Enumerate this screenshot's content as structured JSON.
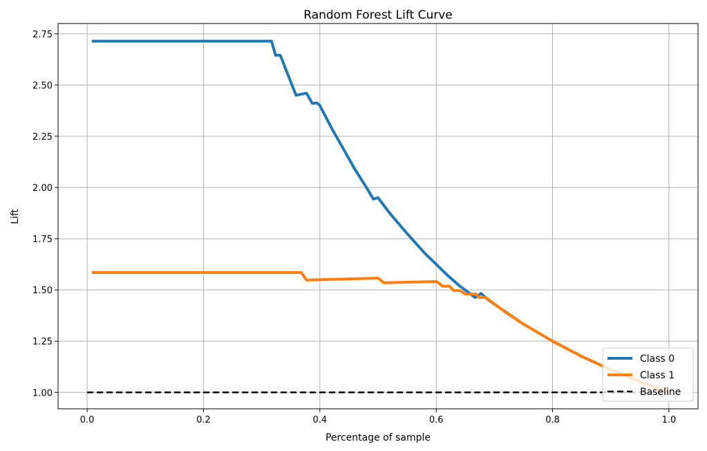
{
  "chart_data": {
    "type": "line",
    "title": "Random Forest Lift Curve",
    "xlabel": "Percentage of sample",
    "ylabel": "Lift",
    "xlim": [
      -0.05,
      1.05
    ],
    "ylim": [
      0.92,
      2.8
    ],
    "xticks": [
      "0.0",
      "0.2",
      "0.4",
      "0.6",
      "0.8",
      "1.0"
    ],
    "yticks": [
      "1.00",
      "1.25",
      "1.50",
      "1.75",
      "2.00",
      "2.25",
      "2.50",
      "2.75"
    ],
    "grid": true,
    "legend_position": "lower-right",
    "series": [
      {
        "name": "Class 0",
        "color": "#1f77b4",
        "x": [
          0.008,
          0.317,
          0.324,
          0.332,
          0.359,
          0.377,
          0.387,
          0.395,
          0.4,
          0.42,
          0.44,
          0.46,
          0.48,
          0.492,
          0.5,
          0.52,
          0.55,
          0.58,
          0.6,
          0.62,
          0.64,
          0.667,
          0.677,
          0.69,
          0.75,
          0.8,
          0.85,
          0.9,
          0.95,
          1.0
        ],
        "y": [
          2.714,
          2.714,
          2.645,
          2.645,
          2.45,
          2.46,
          2.41,
          2.413,
          2.4,
          2.29,
          2.19,
          2.09,
          2.0,
          1.943,
          1.95,
          1.875,
          1.775,
          1.68,
          1.625,
          1.57,
          1.52,
          1.463,
          1.483,
          1.45,
          1.333,
          1.25,
          1.176,
          1.111,
          1.053,
          1.0
        ]
      },
      {
        "name": "Class 1",
        "color": "#ff7f0e",
        "x": [
          0.008,
          0.368,
          0.377,
          0.5,
          0.51,
          0.601,
          0.611,
          0.623,
          0.63,
          0.641,
          0.65,
          0.668,
          0.674,
          0.685,
          0.72,
          0.75,
          0.8,
          0.85,
          0.9,
          0.95,
          1.0
        ],
        "y": [
          1.585,
          1.585,
          1.548,
          1.558,
          1.535,
          1.541,
          1.518,
          1.518,
          1.497,
          1.497,
          1.48,
          1.48,
          1.463,
          1.463,
          1.389,
          1.333,
          1.25,
          1.176,
          1.111,
          1.053,
          1.0
        ]
      },
      {
        "name": "Baseline",
        "color": "#000000",
        "dashed": true,
        "x": [
          0.0,
          1.0
        ],
        "y": [
          1.0,
          1.0
        ]
      }
    ]
  }
}
